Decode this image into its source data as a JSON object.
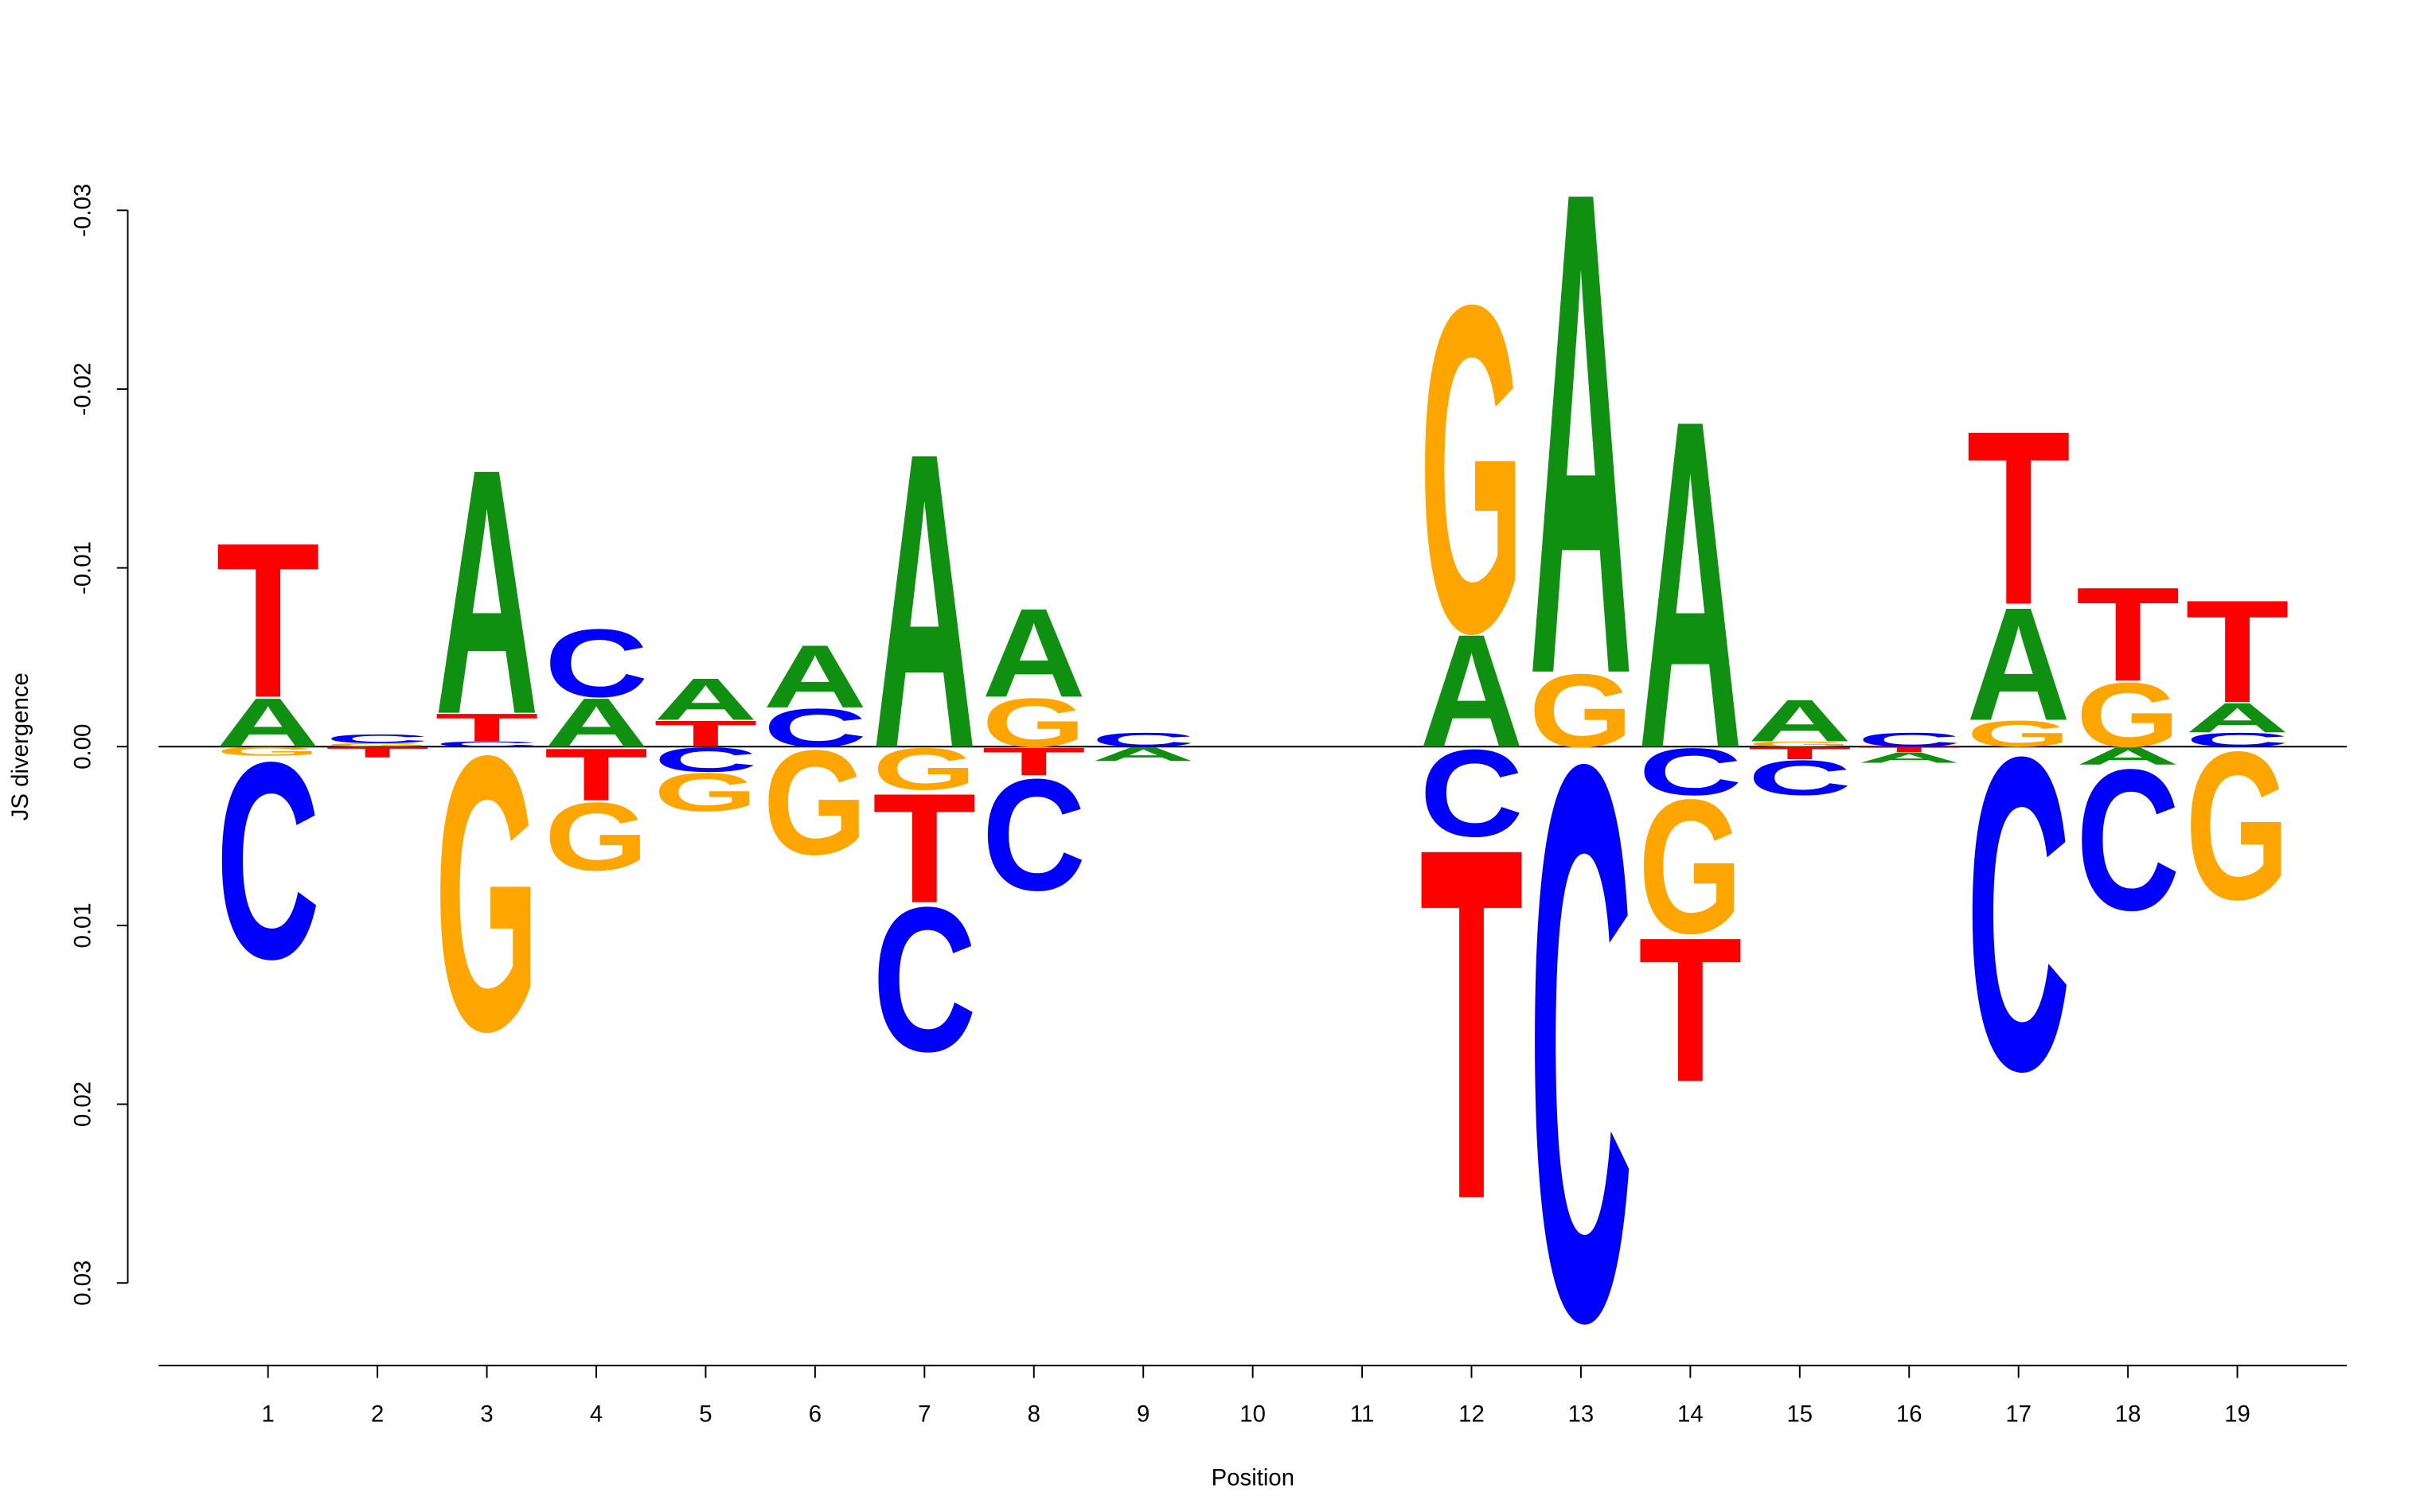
{
  "chart_data": {
    "type": "logo",
    "xlabel": "Position",
    "ylabel": "JS divergence",
    "x": [
      1,
      2,
      3,
      4,
      5,
      6,
      7,
      8,
      9,
      10,
      11,
      12,
      13,
      14,
      15,
      16,
      17,
      18,
      19
    ],
    "xlim": [
      0,
      20
    ],
    "ylim": [
      -0.032,
      0.032
    ],
    "yticks": [
      -0.03,
      -0.02,
      -0.01,
      {
        "value": 0,
        "label": "0.00"
      },
      0.01,
      0.02,
      0.03
    ],
    "series": [
      {
        "name": "A",
        "color": "#109010",
        "values": [
          -0.0028,
          0,
          -0.0141,
          -0.0028,
          -0.0024,
          -0.0036,
          -0.017,
          -0.0051,
          0.0008,
          0,
          0,
          -0.0065,
          -0.0278,
          -0.0189,
          -0.0024,
          0.0006,
          -0.0065,
          0.001,
          -0.0017
        ]
      },
      {
        "name": "C",
        "color": "#0000ff",
        "values": [
          0.0113,
          -0.0005,
          -0.0003,
          -0.0039,
          0.0014,
          -0.0022,
          0.0083,
          0.0064,
          -0.0008,
          0,
          0,
          0.005,
          0.0319,
          0.0027,
          0.002,
          -0.0008,
          0.018,
          0.0081,
          -0.0008
        ]
      },
      {
        "name": "G",
        "color": "#ffa500",
        "values": [
          0.0005,
          -0.0002,
          0.0158,
          0.0039,
          0.0022,
          0.006,
          0.0024,
          -0.0028,
          0,
          0,
          0,
          -0.0188,
          -0.0042,
          0.0077,
          -0.0003,
          0,
          -0.0015,
          -0.0037,
          0.0085
        ]
      },
      {
        "name": "T",
        "color": "#ff0000",
        "values": [
          -0.0089,
          0.0006,
          -0.0016,
          0.003,
          -0.0015,
          0,
          0.0063,
          0.0016,
          0,
          0,
          0,
          0.0202,
          0,
          0.0083,
          0.0007,
          0.0003,
          -0.01,
          -0.0054,
          -0.0059
        ]
      }
    ]
  }
}
